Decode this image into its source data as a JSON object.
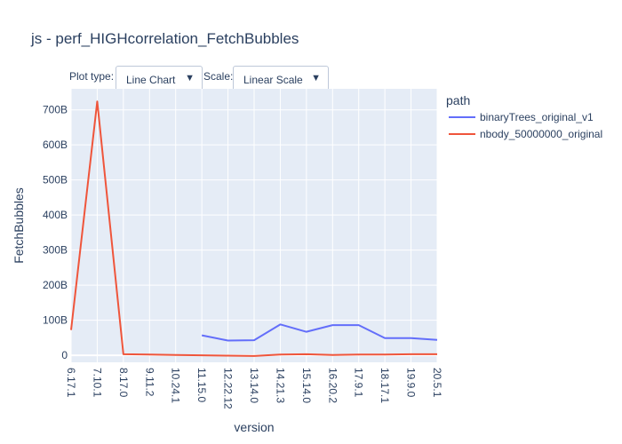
{
  "title": "js - perf_HIGHcorrelation_FetchBubbles",
  "controls": {
    "plot_type_label": "Plot type:",
    "plot_type_value": "Line Chart",
    "scale_label": "Scale:",
    "scale_value": "Linear Scale"
  },
  "legend": {
    "title": "path"
  },
  "colors": {
    "plot_bg": "#e5ecf6",
    "grid": "#ffffff",
    "text": "#2a3f5f"
  },
  "chart_data": {
    "type": "line",
    "xlabel": "version",
    "ylabel": "FetchBubbles",
    "categories": [
      "6.17.1",
      "7.10.1",
      "8.17.0",
      "9.11.2",
      "10.24.1",
      "11.15.0",
      "12.22.12",
      "13.14.0",
      "14.21.3",
      "15.14.0",
      "16.20.2",
      "17.9.1",
      "18.17.1",
      "19.9.0",
      "20.5.1"
    ],
    "ylim": [
      -20,
      760
    ],
    "yticks": [
      0,
      100,
      200,
      300,
      400,
      500,
      600,
      700
    ],
    "ytick_labels": [
      "0",
      "100B",
      "200B",
      "300B",
      "400B",
      "500B",
      "600B",
      "700B"
    ],
    "grid": true,
    "legend_position": "top-right",
    "series": [
      {
        "name": "binaryTrees_original_v1",
        "color": "#636efa",
        "values": [
          null,
          null,
          null,
          null,
          null,
          57,
          42,
          43,
          88,
          67,
          86,
          86,
          49,
          49,
          44
        ]
      },
      {
        "name": "nbody_50000000_original",
        "color": "#ef553b",
        "values": [
          72,
          724,
          3,
          2,
          1,
          0,
          -1,
          -2,
          2,
          3,
          1,
          2,
          2,
          3,
          3
        ]
      }
    ]
  }
}
